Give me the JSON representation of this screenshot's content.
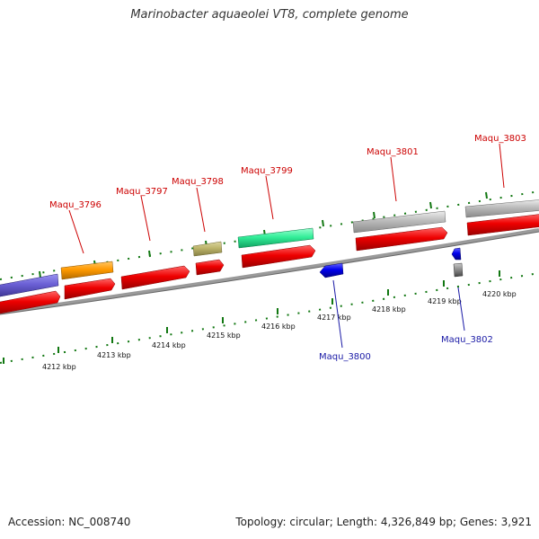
{
  "title": "Marinobacter aquaeolei VT8, complete genome",
  "footer": {
    "accession": "Accession: NC_008740",
    "summary": "Topology: circular; Length: 4,326,849 bp; Genes: 3,921"
  },
  "colors": {
    "cds": "#ee0000",
    "label_forward": "#cc0000",
    "label_reverse": "#1a1aa6",
    "tick": "#117711",
    "backbone": "#888888"
  },
  "scale": {
    "unit": "kbp",
    "labels": [
      "4212 kbp",
      "4213 kbp",
      "4214 kbp",
      "4215 kbp",
      "4216 kbp",
      "4217 kbp",
      "4218 kbp",
      "4219 kbp",
      "4220 kbp"
    ]
  },
  "genes": [
    {
      "name": "Maqu_3796",
      "strand": "forward",
      "color": "#ff9a00"
    },
    {
      "name": "Maqu_3797",
      "strand": "forward",
      "color": "#ee0000"
    },
    {
      "name": "Maqu_3798",
      "strand": "forward",
      "color": "#bdb56b"
    },
    {
      "name": "Maqu_3799",
      "strand": "forward",
      "color": "#33ee99"
    },
    {
      "name": "Maqu_3800",
      "strand": "reverse",
      "color": "#0000ee"
    },
    {
      "name": "Maqu_3801",
      "strand": "forward",
      "color": "#bbbbbb"
    },
    {
      "name": "Maqu_3802",
      "strand": "reverse",
      "color": "#0000ee"
    },
    {
      "name": "Maqu_3803",
      "strand": "forward",
      "color": "#bbbbbb"
    }
  ]
}
